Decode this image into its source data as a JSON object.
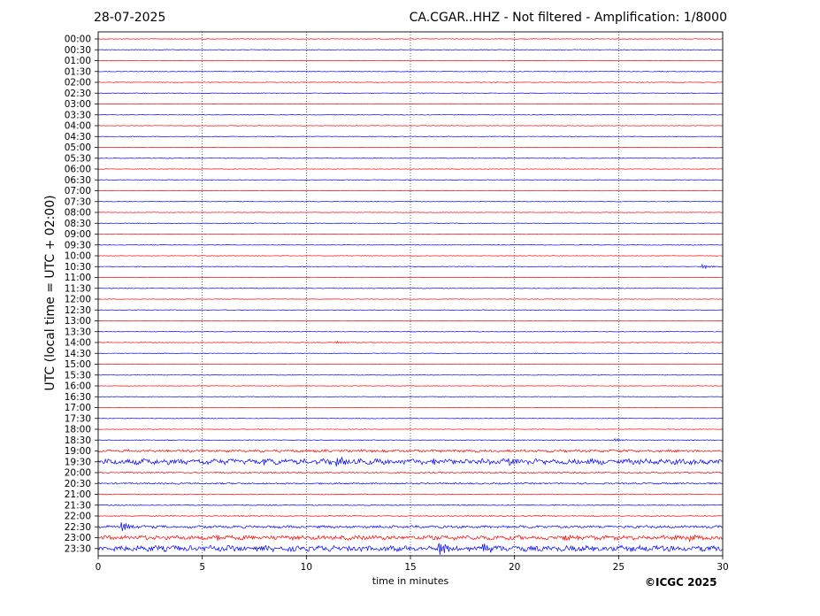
{
  "header": {
    "date": "28-07-2025",
    "title": "CA.CGAR..HHZ - Not filtered - Amplification: 1/8000"
  },
  "footer": {
    "copyright": "©ICGC 2025"
  },
  "chart_data": {
    "type": "line",
    "title": "CA.CGAR..HHZ - Not filtered - Amplification: 1/8000",
    "xlabel": "time in minutes",
    "ylabel": "UTC (local time = UTC + 02:00)",
    "xlim": [
      0,
      30
    ],
    "x_ticks": [
      0,
      5,
      10,
      15,
      20,
      25,
      30
    ],
    "grid": "vertical dotted lines at 5-minute intervals",
    "row_labels": [
      "00:00",
      "00:30",
      "01:00",
      "01:30",
      "02:00",
      "02:30",
      "03:00",
      "03:30",
      "04:00",
      "04:30",
      "05:00",
      "05:30",
      "06:00",
      "06:30",
      "07:00",
      "07:30",
      "08:00",
      "08:30",
      "09:00",
      "09:30",
      "10:00",
      "10:30",
      "11:00",
      "11:30",
      "12:00",
      "12:30",
      "13:00",
      "13:30",
      "14:00",
      "14:30",
      "15:00",
      "15:30",
      "16:00",
      "16:30",
      "17:00",
      "17:30",
      "18:00",
      "18:30",
      "19:00",
      "19:30",
      "20:00",
      "20:30",
      "21:00",
      "21:30",
      "22:00",
      "22:30",
      "23:00",
      "23:30"
    ],
    "colors": {
      "even_rows": "#ff0000",
      "odd_rows": "#0000ff"
    },
    "trace_noise_level": [
      0.35,
      0.3,
      0.3,
      0.35,
      0.35,
      0.3,
      0.3,
      0.3,
      0.3,
      0.3,
      0.3,
      0.3,
      0.3,
      0.3,
      0.25,
      0.25,
      0.3,
      0.3,
      0.3,
      0.3,
      0.3,
      0.35,
      0.3,
      0.3,
      0.3,
      0.3,
      0.3,
      0.3,
      0.35,
      0.3,
      0.3,
      0.3,
      0.25,
      0.3,
      0.3,
      0.3,
      0.3,
      0.35,
      1.2,
      2.6,
      0.8,
      0.8,
      0.5,
      0.5,
      0.5,
      1.2,
      2.0,
      2.6
    ],
    "events": [
      {
        "row": "14:00",
        "minute": 11.5,
        "amplitude": 1.2
      },
      {
        "row": "10:30",
        "minute": 29.1,
        "amplitude": 2.0
      },
      {
        "row": "18:30",
        "minute": 24.9,
        "amplitude": 1.4
      },
      {
        "row": "19:30",
        "minute": 7.6,
        "amplitude": 4.0
      },
      {
        "row": "19:30",
        "minute": 11.5,
        "amplitude": 4.0
      },
      {
        "row": "19:30",
        "minute": 16.0,
        "amplitude": 3.5
      },
      {
        "row": "19:30",
        "minute": 19.8,
        "amplitude": 3.5
      },
      {
        "row": "22:30",
        "minute": 1.2,
        "amplitude": 6.0
      },
      {
        "row": "23:00",
        "minute": 5.8,
        "amplitude": 3.5
      },
      {
        "row": "23:00",
        "minute": 22.4,
        "amplitude": 3.5
      },
      {
        "row": "23:00",
        "minute": 28.4,
        "amplitude": 3.5
      },
      {
        "row": "23:30",
        "minute": 16.4,
        "amplitude": 6.5
      },
      {
        "row": "23:30",
        "minute": 18.5,
        "amplitude": 6.0
      }
    ]
  }
}
